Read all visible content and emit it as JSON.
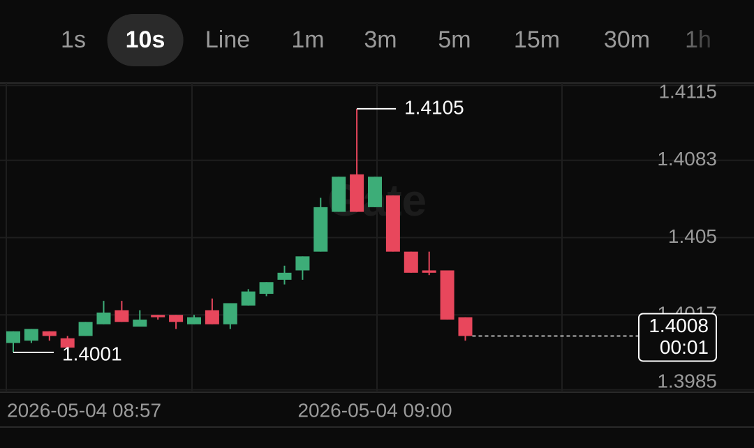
{
  "tabs": [
    "1s",
    "10s",
    "Line",
    "1m",
    "3m",
    "5m",
    "15m",
    "30m",
    "1h"
  ],
  "active_tab": 1,
  "chart_data": {
    "type": "candlestick",
    "watermark": "Gate",
    "categories": [
      null,
      null,
      "2026-05-04 08:57",
      null,
      null,
      null,
      null,
      null,
      null,
      null,
      null,
      null,
      null,
      null,
      null,
      null,
      null,
      null,
      null,
      null,
      "2026-05-04 09:00",
      null,
      null,
      null,
      null,
      null
    ],
    "open": [
      1.4005,
      1.4006,
      1.401,
      1.4007,
      1.4008,
      1.4013,
      1.4019,
      1.4012,
      1.4017,
      1.4017,
      1.4013,
      1.4019,
      1.4013,
      1.4021,
      1.4026,
      1.4032,
      1.4036,
      1.4044,
      1.4061,
      1.4077,
      1.4063,
      1.4068,
      1.4044,
      1.4036,
      1.4036,
      1.4016
    ],
    "high": [
      1.401,
      1.4011,
      1.401,
      1.4008,
      1.4014,
      1.4023,
      1.4023,
      1.4019,
      1.4017,
      1.4017,
      1.4017,
      1.4024,
      1.4022,
      1.4028,
      1.4031,
      1.4038,
      1.4042,
      1.4067,
      1.4076,
      1.4105,
      1.4076,
      1.4068,
      1.4044,
      1.4044,
      1.4036,
      1.4016
    ],
    "low": [
      1.4001,
      1.4005,
      1.4006,
      1.4003,
      1.4008,
      1.4013,
      1.4014,
      1.4012,
      1.4015,
      1.4011,
      1.4013,
      1.4013,
      1.4011,
      1.4021,
      1.4025,
      1.403,
      1.4032,
      1.4044,
      1.4061,
      1.4061,
      1.4063,
      1.4044,
      1.4035,
      1.4034,
      1.4015,
      1.4006
    ],
    "close": [
      1.401,
      1.4011,
      1.4008,
      1.4003,
      1.4014,
      1.4018,
      1.4014,
      1.4015,
      1.4016,
      1.4014,
      1.4016,
      1.4013,
      1.4022,
      1.4027,
      1.4031,
      1.4035,
      1.4042,
      1.4063,
      1.4076,
      1.4061,
      1.4076,
      1.4044,
      1.4035,
      1.4035,
      1.4015,
      1.4008
    ],
    "up_color": "#3dad78",
    "down_color": "#e8475c",
    "countdown": "00:01",
    "ylim": [
      1.3984,
      1.4116
    ],
    "yticks": [
      1.4115,
      1.4083,
      1.405,
      1.4017,
      1.3985
    ],
    "grid": true
  }
}
